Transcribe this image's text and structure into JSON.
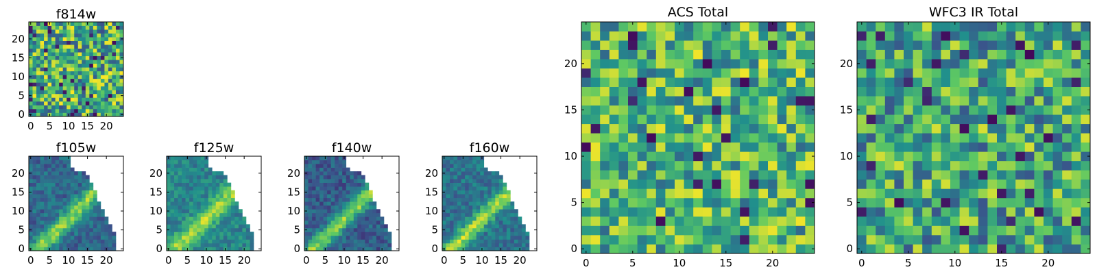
{
  "figure": {
    "type": "heatmap",
    "colormap": "viridis",
    "colormap_stops": [
      "#440154",
      "#3b528b",
      "#21908c",
      "#5dc863",
      "#fde725"
    ],
    "axis_color": "#000000",
    "background": "#ffffff"
  },
  "chart_data": [
    {
      "id": "f814w",
      "type": "heatmap",
      "title": "f814w",
      "grid_size": 25,
      "pattern": "noise",
      "base": 0.62,
      "amplitude": 0.38,
      "gradient": 0.0,
      "band_width": 0,
      "seed": 11,
      "xlim": [
        -0.5,
        24.5
      ],
      "ylim": [
        -0.5,
        24.5
      ],
      "xticks": [
        0,
        5,
        10,
        15,
        20
      ],
      "yticks": [
        0,
        5,
        10,
        15,
        20
      ]
    },
    {
      "id": "f105w",
      "type": "heatmap",
      "title": "f105w",
      "grid_size": 25,
      "pattern": "diagonal",
      "base": 0.34,
      "amplitude": 0.22,
      "gradient": 0.0,
      "band_width": 3.2,
      "seed": 21,
      "xlim": [
        -0.5,
        24.5
      ],
      "ylim": [
        -0.5,
        24.5
      ],
      "xticks": [
        0,
        5,
        10,
        15,
        20
      ],
      "yticks": [
        0,
        5,
        10,
        15,
        20
      ]
    },
    {
      "id": "f125w",
      "type": "heatmap",
      "title": "f125w",
      "grid_size": 25,
      "pattern": "diagonal",
      "base": 0.45,
      "amplitude": 0.18,
      "gradient": 0.0,
      "band_width": 3.6,
      "seed": 31,
      "xlim": [
        -0.5,
        24.5
      ],
      "ylim": [
        -0.5,
        24.5
      ],
      "xticks": [
        0,
        5,
        10,
        15,
        20
      ],
      "yticks": [
        0,
        5,
        10,
        15,
        20
      ]
    },
    {
      "id": "f140w",
      "type": "heatmap",
      "title": "f140w",
      "grid_size": 25,
      "pattern": "diagonal",
      "base": 0.3,
      "amplitude": 0.24,
      "gradient": 0.0,
      "band_width": 3.0,
      "seed": 41,
      "xlim": [
        -0.5,
        24.5
      ],
      "ylim": [
        -0.5,
        24.5
      ],
      "xticks": [
        0,
        5,
        10,
        15,
        20
      ],
      "yticks": [
        0,
        5,
        10,
        15,
        20
      ]
    },
    {
      "id": "f160w",
      "type": "heatmap",
      "title": "f160w",
      "grid_size": 25,
      "pattern": "diagonal",
      "base": 0.38,
      "amplitude": 0.22,
      "gradient": 0.0,
      "band_width": 3.0,
      "seed": 51,
      "xlim": [
        -0.5,
        24.5
      ],
      "ylim": [
        -0.5,
        24.5
      ],
      "xticks": [
        0,
        5,
        10,
        15,
        20
      ],
      "yticks": [
        0,
        5,
        10,
        15,
        20
      ]
    },
    {
      "id": "acs_total",
      "type": "heatmap",
      "title": "ACS Total",
      "grid_size": 25,
      "pattern": "noise",
      "base": 0.66,
      "amplitude": 0.32,
      "gradient": 0.0,
      "band_width": 0,
      "seed": 61,
      "xlim": [
        -0.5,
        24.5
      ],
      "ylim": [
        -0.5,
        24.5
      ],
      "xticks": [
        0,
        5,
        10,
        15,
        20
      ],
      "yticks": [
        0,
        5,
        10,
        15,
        20
      ]
    },
    {
      "id": "wfc3_ir_total",
      "type": "heatmap",
      "title": "WFC3 IR Total",
      "grid_size": 25,
      "pattern": "noise",
      "base": 0.6,
      "amplitude": 0.34,
      "gradient": 0.0,
      "band_width": 0,
      "seed": 71,
      "xlim": [
        -0.5,
        24.5
      ],
      "ylim": [
        -0.5,
        24.5
      ],
      "xticks": [
        0,
        5,
        10,
        15,
        20
      ],
      "yticks": [
        0,
        5,
        10,
        15,
        20
      ]
    }
  ]
}
